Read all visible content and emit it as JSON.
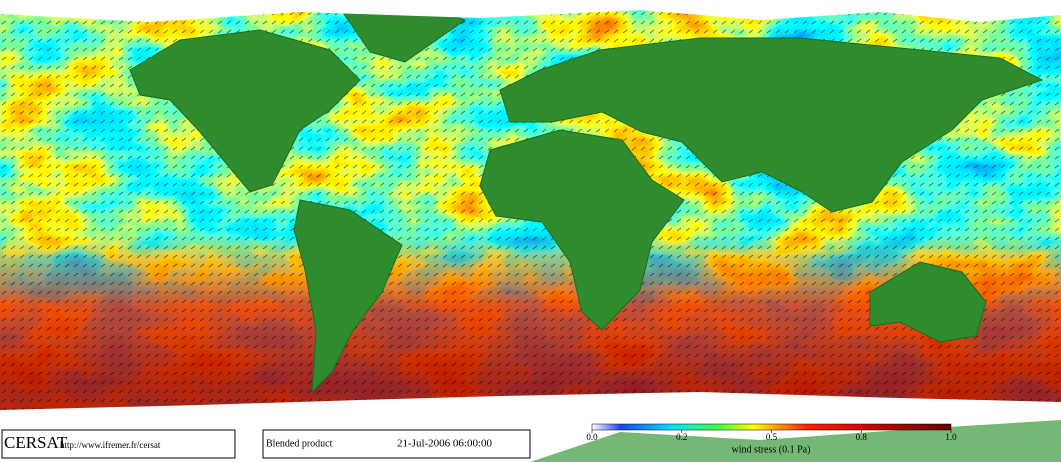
{
  "footer": {
    "logo": "CERSAT",
    "url": "http://www.ifremer.fr/cersat",
    "product": "Blended product",
    "timestamp": "21-Jul-2006 06:00:00"
  },
  "colorbar": {
    "ticks": [
      "0.0",
      "0.2",
      "0.5",
      "0.8",
      "1.0"
    ],
    "label": "wind stress (0.1 Pa)"
  }
}
